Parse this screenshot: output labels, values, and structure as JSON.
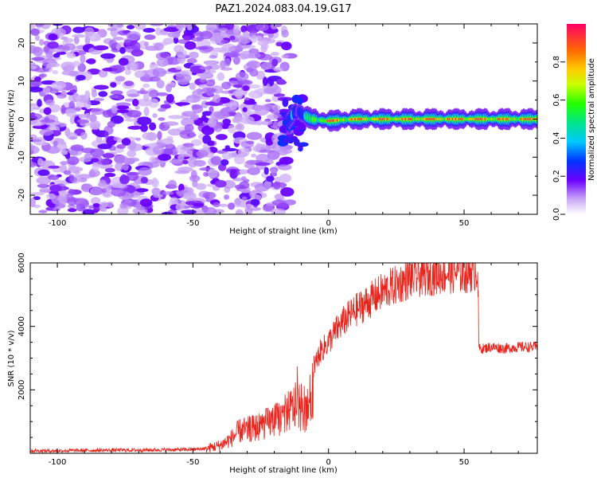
{
  "title": "PAZ1.2024.083.04.19.G17",
  "chart_data": [
    {
      "type": "heatmap",
      "xlabel": "Height of straight line (km)",
      "ylabel": "Frequency (Hz)",
      "xlim": [
        -110,
        77
      ],
      "ylim": [
        -25,
        25
      ],
      "xticks": [
        -100,
        -50,
        0,
        50
      ],
      "yticks": [
        -20,
        -10,
        0,
        10,
        20
      ],
      "noise_region_x": [
        -110,
        -17
      ],
      "signal_ridge": {
        "x": [
          -15,
          -12,
          -9,
          -6,
          0,
          10,
          20,
          30,
          40,
          50,
          60,
          70,
          77
        ],
        "frequency": [
          -1,
          2.5,
          1,
          0,
          -0.5,
          0,
          0,
          0,
          0,
          0,
          0,
          0,
          0
        ],
        "peak_amplitude": [
          0.3,
          0.4,
          0.35,
          0.5,
          0.95,
          0.9,
          0.95,
          0.95,
          0.95,
          0.95,
          0.9,
          0.9,
          0.85
        ]
      },
      "colorbar": {
        "label": "Normalized spectral amplitude",
        "range": [
          0,
          1
        ],
        "ticks": [
          "0.0",
          "0.2",
          "0.4",
          "0.6",
          "0.8"
        ]
      },
      "grid": false
    },
    {
      "type": "line",
      "xlabel": "Height of straight line (km)",
      "ylabel": "SNR (10 * v/v)",
      "xlim": [
        -110,
        77
      ],
      "ylim": [
        0,
        6000
      ],
      "xticks": [
        -100,
        -50,
        0,
        50
      ],
      "yticks": [
        2000,
        4000,
        6000
      ],
      "series": [
        {
          "color": "#e8231b",
          "x": [
            -110,
            -100,
            -90,
            -80,
            -70,
            -60,
            -50,
            -45,
            -40,
            -36,
            -33,
            -30,
            -27,
            -24,
            -21,
            -18,
            -15,
            -12,
            -10,
            -8,
            -6,
            -5,
            -3,
            0,
            3,
            6,
            10,
            15,
            20,
            25,
            30,
            35,
            40,
            45,
            50,
            53,
            55,
            55.5,
            57,
            60,
            65,
            70,
            77
          ],
          "y": [
            80,
            80,
            90,
            100,
            100,
            110,
            120,
            150,
            250,
            450,
            700,
            750,
            800,
            900,
            1000,
            1100,
            1300,
            1500,
            1400,
            1300,
            1900,
            2800,
            3200,
            3500,
            3900,
            4200,
            4500,
            4800,
            5100,
            5300,
            5500,
            5600,
            5650,
            5700,
            5700,
            5750,
            5800,
            3300,
            3300,
            3350,
            3300,
            3350,
            3350
          ]
        }
      ],
      "grid": false
    }
  ]
}
